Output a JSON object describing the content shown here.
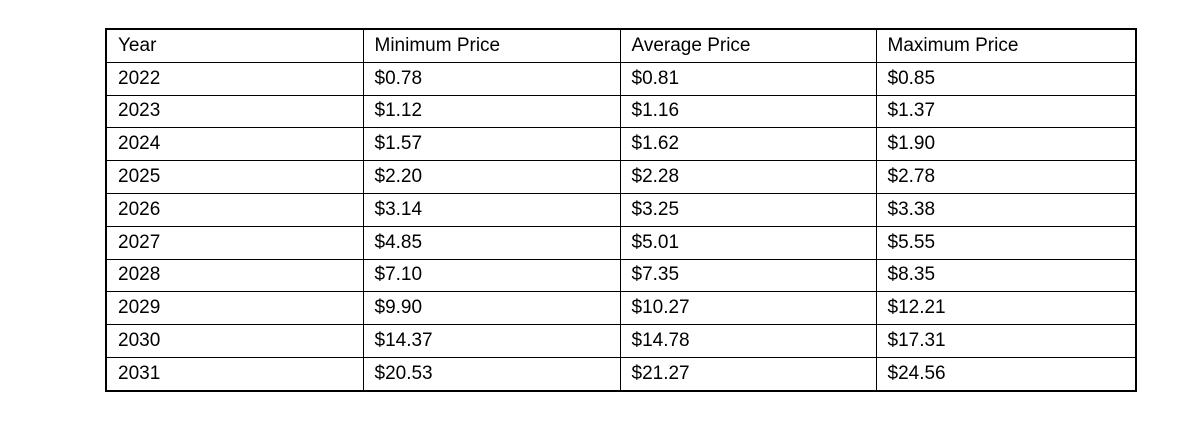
{
  "table": {
    "headers": [
      "Year",
      "Minimum Price",
      "Average Price",
      "Maximum Price"
    ],
    "rows": [
      [
        "2022",
        "$0.78",
        "$0.81",
        "$0.85"
      ],
      [
        "2023",
        "$1.12",
        "$1.16",
        "$1.37"
      ],
      [
        "2024",
        "$1.57",
        "$1.62",
        "$1.90"
      ],
      [
        "2025",
        "$2.20",
        "$2.28",
        "$2.78"
      ],
      [
        "2026",
        "$3.14",
        "$3.25",
        "$3.38"
      ],
      [
        "2027",
        "$4.85",
        "$5.01",
        "$5.55"
      ],
      [
        "2028",
        "$7.10",
        "$7.35",
        "$8.35"
      ],
      [
        "2029",
        "$9.90",
        "$10.27",
        "$12.21"
      ],
      [
        "2030",
        "$14.37",
        "$14.78",
        "$17.31"
      ],
      [
        "2031",
        "$20.53",
        "$21.27",
        "$24.56"
      ]
    ]
  },
  "chart_data": {
    "type": "table",
    "title": "",
    "categories": [
      "2022",
      "2023",
      "2024",
      "2025",
      "2026",
      "2027",
      "2028",
      "2029",
      "2030",
      "2031"
    ],
    "series": [
      {
        "name": "Minimum Price",
        "values": [
          0.78,
          1.12,
          1.57,
          2.2,
          3.14,
          4.85,
          7.1,
          9.9,
          14.37,
          20.53
        ]
      },
      {
        "name": "Average Price",
        "values": [
          0.81,
          1.16,
          1.62,
          2.28,
          3.25,
          5.01,
          7.35,
          10.27,
          14.78,
          21.27
        ]
      },
      {
        "name": "Maximum Price",
        "values": [
          0.85,
          1.37,
          1.9,
          2.78,
          3.38,
          5.55,
          8.35,
          12.21,
          17.31,
          24.56
        ]
      }
    ],
    "unit": "USD"
  },
  "colors": {
    "background": "#ffffff",
    "border": "#000000",
    "text": "#000000"
  }
}
